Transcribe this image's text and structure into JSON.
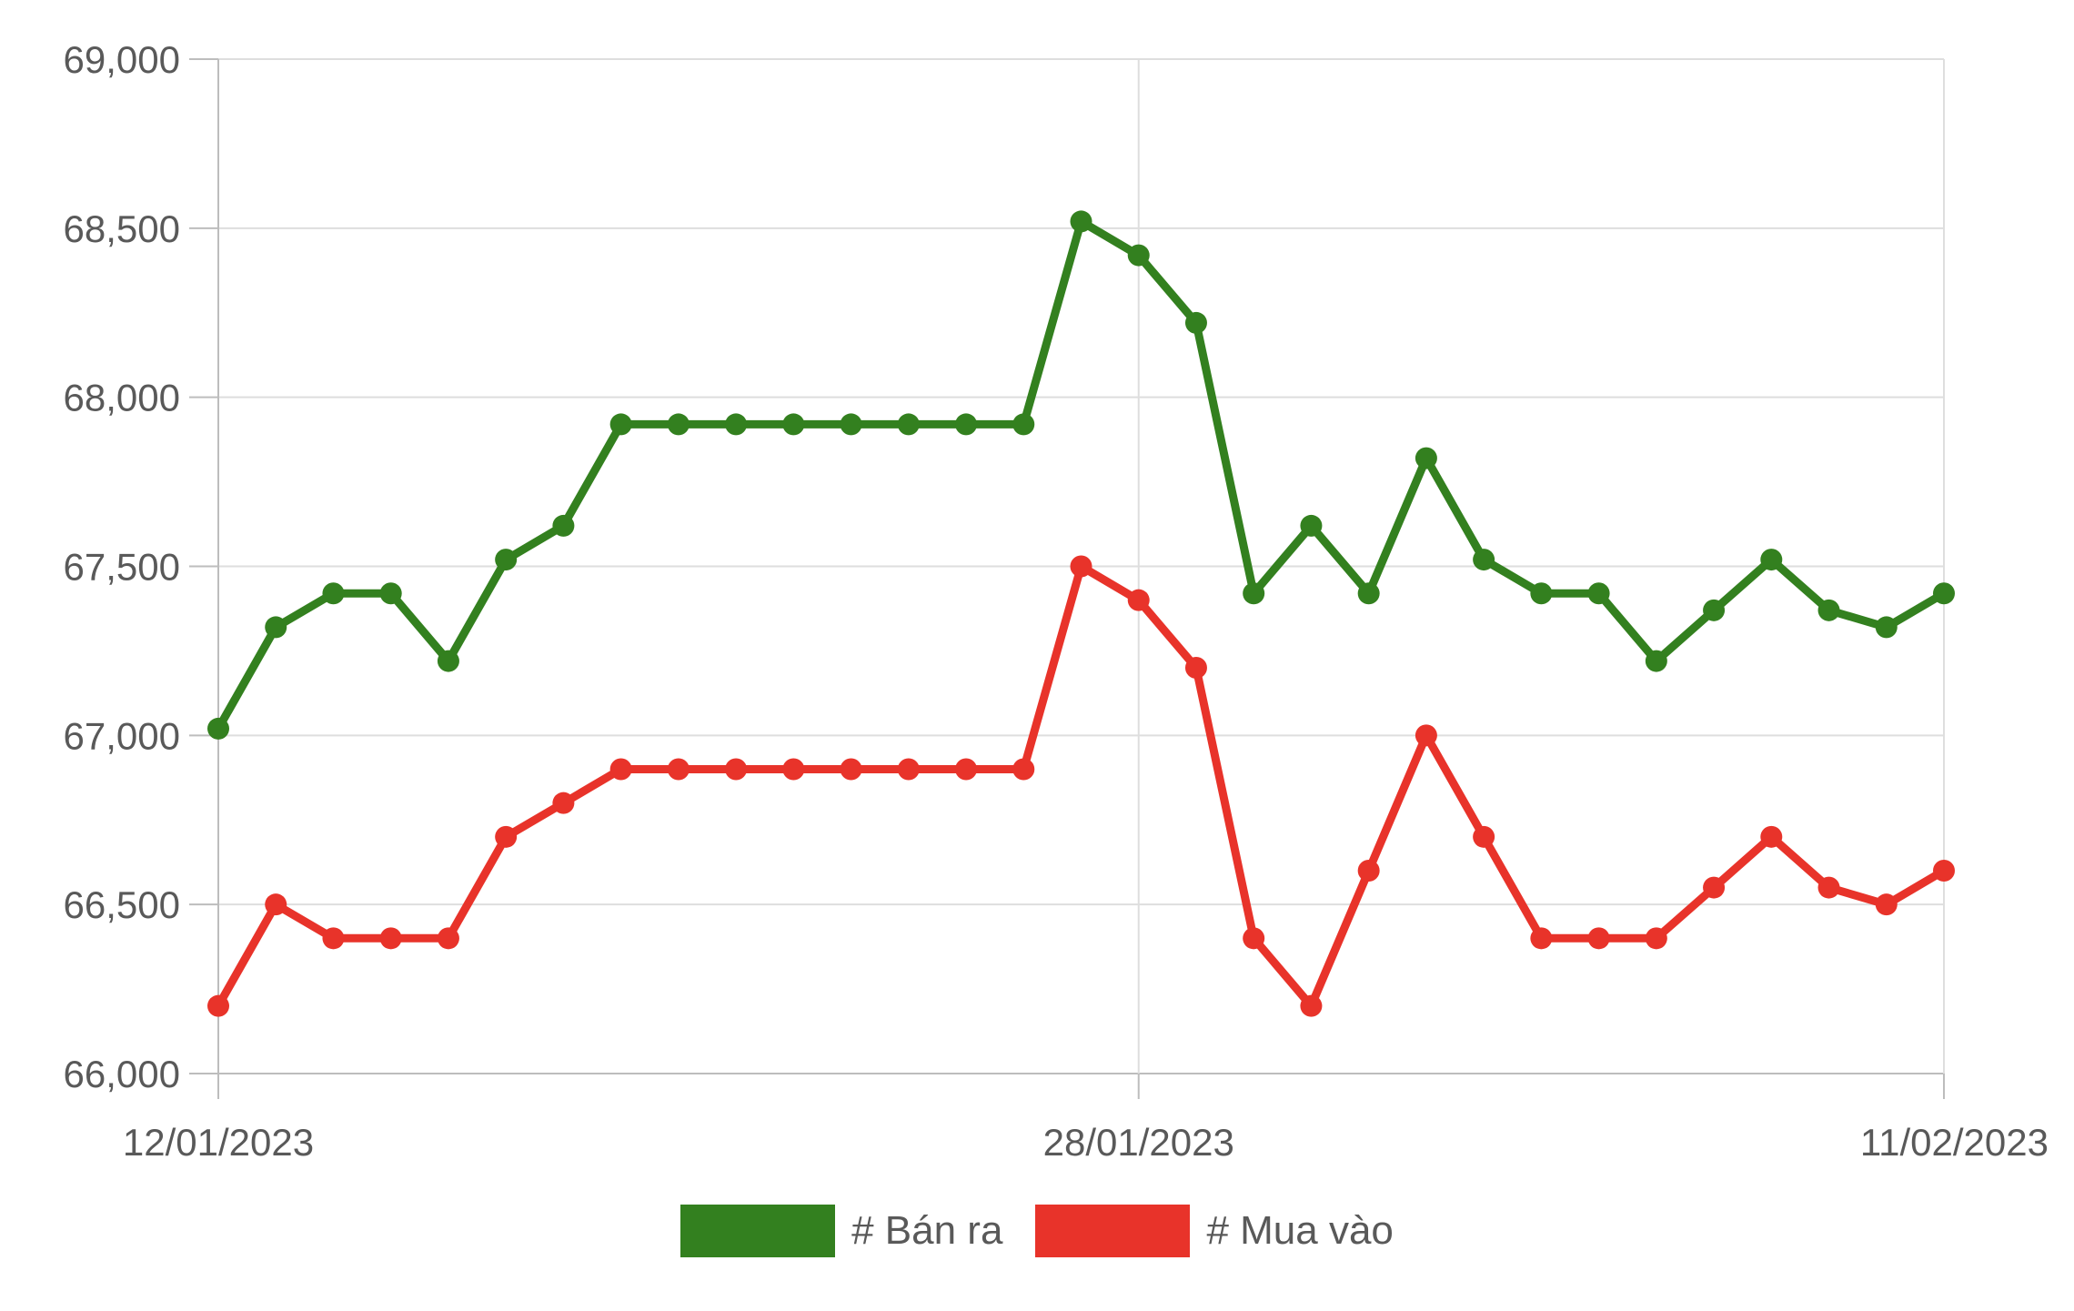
{
  "chart_data": {
    "type": "line",
    "title": "",
    "xlabel": "",
    "ylabel": "",
    "ylim": [
      66000,
      69000
    ],
    "y_ticks": [
      "66,000",
      "66,500",
      "67,000",
      "67,500",
      "68,000",
      "68,500",
      "69,000"
    ],
    "y_tick_values": [
      66000,
      66500,
      67000,
      67500,
      68000,
      68500,
      69000
    ],
    "x_start": "12/01/2023",
    "x_end": "11/02/2023",
    "x_tick_labels": [
      {
        "index": 0,
        "label": "12/01/2023"
      },
      {
        "index": 16,
        "label": "28/01/2023"
      },
      {
        "index": 30,
        "label": "11/02/2023"
      }
    ],
    "grid": true,
    "legend_position": "bottom",
    "series": [
      {
        "name": "# Bán ra",
        "color": "#33801f",
        "values": [
          67020,
          67320,
          67420,
          67420,
          67220,
          67520,
          67620,
          67920,
          67920,
          67920,
          67920,
          67920,
          67920,
          67920,
          67920,
          68520,
          68420,
          68220,
          67420,
          67620,
          67420,
          67820,
          67520,
          67420,
          67420,
          67220,
          67370,
          67520,
          67370,
          67320,
          67420
        ]
      },
      {
        "name": "# Mua vào",
        "color": "#e8332a",
        "values": [
          66200,
          66500,
          66400,
          66400,
          66400,
          66700,
          66800,
          66900,
          66900,
          66900,
          66900,
          66900,
          66900,
          66900,
          66900,
          67500,
          67400,
          67200,
          66400,
          66200,
          66600,
          67000,
          66700,
          66400,
          66400,
          66400,
          66550,
          66700,
          66550,
          66500,
          66600
        ]
      }
    ]
  }
}
